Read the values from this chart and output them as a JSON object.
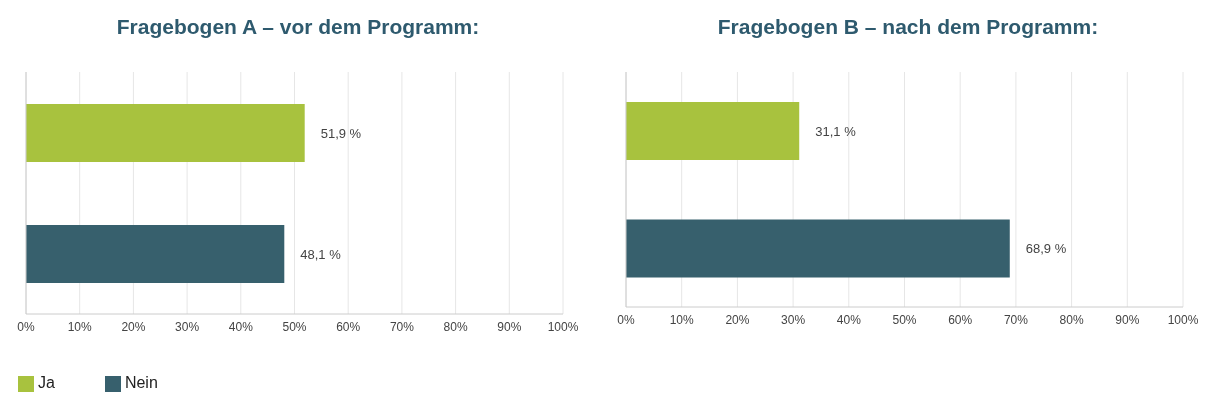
{
  "chart_data": [
    {
      "type": "bar",
      "orientation": "horizontal",
      "title": "Fragebogen A – vor dem Programm:",
      "categories": [
        null,
        null
      ],
      "series": [
        {
          "name": "Ja",
          "color": "#a8c23e",
          "values": [
            51.9,
            null
          ],
          "value_labels": [
            "51,9 %",
            null
          ]
        },
        {
          "name": "Nein",
          "color": "#37606d",
          "values": [
            null,
            48.1
          ],
          "value_labels": [
            null,
            "48,1 %"
          ]
        }
      ],
      "xlim": [
        0,
        100
      ],
      "xticks": [
        {
          "value": 0,
          "label": "0%"
        },
        {
          "value": 10,
          "label": "10%"
        },
        {
          "value": 20,
          "label": "20%"
        },
        {
          "value": 30,
          "label": "30%"
        },
        {
          "value": 40,
          "label": "40%"
        },
        {
          "value": 50,
          "label": "50%"
        },
        {
          "value": 60,
          "label": "60%"
        },
        {
          "value": 70,
          "label": "70%"
        },
        {
          "value": 80,
          "label": "80%"
        },
        {
          "value": 90,
          "label": "90%"
        },
        {
          "value": 100,
          "label": "100%"
        }
      ],
      "grid": "x",
      "tick_labels": "x",
      "legend": "bottom left"
    },
    {
      "type": "bar",
      "orientation": "horizontal",
      "title": "Fragebogen B – nach dem Programm:",
      "categories": [
        null,
        null
      ],
      "series": [
        {
          "color": "#a8c23e",
          "values": [
            31.1,
            null
          ],
          "value_labels": [
            "31,1 %",
            null
          ]
        },
        {
          "color": "#37606d",
          "values": [
            null,
            68.9
          ],
          "value_labels": [
            null,
            "68,9 %"
          ]
        }
      ],
      "xlim": [
        0,
        100
      ],
      "xticks": [
        {
          "value": 0,
          "label": "0%"
        },
        {
          "value": 10,
          "label": "10%"
        },
        {
          "value": 20,
          "label": "20%"
        },
        {
          "value": 30,
          "label": "30%"
        },
        {
          "value": 40,
          "label": "40%"
        },
        {
          "value": 50,
          "label": "50%"
        },
        {
          "value": 60,
          "label": "60%"
        },
        {
          "value": 70,
          "label": "70%"
        },
        {
          "value": 80,
          "label": "80%"
        },
        {
          "value": 90,
          "label": "90%"
        },
        {
          "value": 100,
          "label": "100%"
        }
      ],
      "grid": "x",
      "tick_labels": "x",
      "legend": false
    }
  ]
}
